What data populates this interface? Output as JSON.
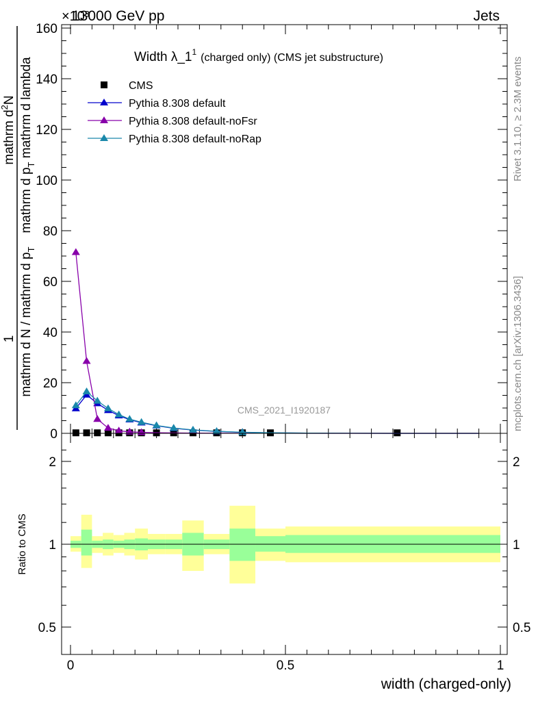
{
  "header": {
    "left": "13000 GeV pp",
    "right": "Jets",
    "multiplier": "×10³"
  },
  "side_labels": {
    "rivet": "Rivet 3.1.10, ≥ 2.3M events",
    "mcplots": "mcplots.cern.ch [arXiv:1306.3436]"
  },
  "watermark": "CMS_2021_I1920187",
  "chart_data": [
    {
      "type": "line",
      "title_main": "Width λ_1",
      "title_sup": "1",
      "title_rest": "(charged only) (CMS jet substructure)",
      "ylabel": {
        "line1": "1",
        "line2": "mathrm d N / mathrm d p",
        "line2_sub": "T",
        "line3": "mathrm d",
        "line3_sup": "2",
        "line3_rest": "N",
        "line4": "mathrm d p",
        "line4_sub": "T",
        "line4_rest": " mathrm d lambda"
      },
      "xlim": [
        0,
        1
      ],
      "ylim": [
        0,
        160
      ],
      "y_scale_factor": 1000,
      "y_ticks": [
        0,
        20,
        40,
        60,
        80,
        100,
        120,
        140,
        160
      ],
      "y_tick_labels": [
        "0",
        "20",
        "40",
        "60",
        "80",
        "100",
        "120",
        "140",
        "160"
      ],
      "legend_placement": "top-left",
      "series": [
        {
          "name": "CMS",
          "marker": "square",
          "color": "#000000",
          "x": [
            0.0125,
            0.0375,
            0.0625,
            0.0875,
            0.1125,
            0.1375,
            0.165,
            0.2,
            0.24,
            0.285,
            0.34,
            0.4,
            0.465,
            0.76
          ],
          "y": [
            0.2,
            0.2,
            0.2,
            0.2,
            0.2,
            0.2,
            0.2,
            0.2,
            0.2,
            0.2,
            0.2,
            0.2,
            0.2,
            0.2
          ]
        },
        {
          "name": "Pythia 8.308 default",
          "marker": "triangle",
          "color": "#0000cc",
          "x": [
            0.0125,
            0.0375,
            0.0625,
            0.0875,
            0.1125,
            0.1375,
            0.165,
            0.2,
            0.24,
            0.285,
            0.34,
            0.4,
            0.465,
            0.55,
            0.65,
            0.75,
            0.85,
            0.95
          ],
          "y": [
            9.8,
            15.2,
            11.8,
            9.1,
            7.0,
            5.4,
            4.2,
            3.0,
            2.0,
            1.3,
            0.75,
            0.4,
            0.2,
            0.07,
            0.03,
            0.01,
            0.005,
            0.002
          ]
        },
        {
          "name": "Pythia 8.308 default-noFsr",
          "marker": "triangle",
          "color": "#8800aa",
          "x": [
            0.0125,
            0.0375,
            0.0625,
            0.0875,
            0.1125,
            0.1375,
            0.165,
            0.2,
            0.24,
            0.285,
            0.34,
            0.4,
            0.465,
            0.55,
            0.65,
            0.75,
            0.85,
            0.95
          ],
          "y": [
            71.5,
            28.5,
            5.6,
            2.1,
            1.0,
            0.6,
            0.4,
            0.25,
            0.15,
            0.1,
            0.05,
            0.03,
            0.02,
            0.01,
            0.005,
            0.003,
            0.002,
            0.001
          ]
        },
        {
          "name": "Pythia 8.308 default-noRap",
          "marker": "triangle",
          "color": "#1a88aa",
          "x": [
            0.0125,
            0.0375,
            0.0625,
            0.0875,
            0.1125,
            0.1375,
            0.165,
            0.2,
            0.24,
            0.285,
            0.34,
            0.4,
            0.465,
            0.55,
            0.65,
            0.75,
            0.85,
            0.95
          ],
          "y": [
            11.0,
            16.5,
            12.8,
            9.8,
            7.4,
            5.6,
            4.4,
            3.1,
            2.1,
            1.35,
            0.8,
            0.42,
            0.21,
            0.08,
            0.03,
            0.012,
            0.005,
            0.002
          ]
        }
      ]
    },
    {
      "type": "area",
      "ylabel": "Ratio to CMS",
      "xlabel": "width (charged-only)",
      "xlim": [
        0,
        1
      ],
      "ylim": [
        0.4,
        2.4
      ],
      "y_scale": "log",
      "x_ticks": [
        0,
        0.5,
        1
      ],
      "x_tick_labels": [
        "0",
        "0.5",
        "1"
      ],
      "y_ticks": [
        0.5,
        1,
        2
      ],
      "y_tick_labels": [
        "0.5",
        "1",
        "2"
      ],
      "reference_line": 1,
      "bands": {
        "inner_color": "#99ff99",
        "outer_color": "#ffff99",
        "bins": [
          {
            "x0": 0.0,
            "x1": 0.025,
            "inner": [
              0.97,
              1.03
            ],
            "outer": [
              0.94,
              1.07
            ]
          },
          {
            "x0": 0.025,
            "x1": 0.05,
            "inner": [
              0.91,
              1.13
            ],
            "outer": [
              0.82,
              1.28
            ]
          },
          {
            "x0": 0.05,
            "x1": 0.075,
            "inner": [
              0.97,
              1.03
            ],
            "outer": [
              0.93,
              1.07
            ]
          },
          {
            "x0": 0.075,
            "x1": 0.1,
            "inner": [
              0.96,
              1.04
            ],
            "outer": [
              0.91,
              1.1
            ]
          },
          {
            "x0": 0.1,
            "x1": 0.125,
            "inner": [
              0.97,
              1.03
            ],
            "outer": [
              0.93,
              1.08
            ]
          },
          {
            "x0": 0.125,
            "x1": 0.15,
            "inner": [
              0.96,
              1.04
            ],
            "outer": [
              0.91,
              1.1
            ]
          },
          {
            "x0": 0.15,
            "x1": 0.18,
            "inner": [
              0.95,
              1.05
            ],
            "outer": [
              0.88,
              1.14
            ]
          },
          {
            "x0": 0.18,
            "x1": 0.22,
            "inner": [
              0.96,
              1.04
            ],
            "outer": [
              0.92,
              1.09
            ]
          },
          {
            "x0": 0.22,
            "x1": 0.26,
            "inner": [
              0.96,
              1.04
            ],
            "outer": [
              0.92,
              1.09
            ]
          },
          {
            "x0": 0.26,
            "x1": 0.31,
            "inner": [
              0.91,
              1.1
            ],
            "outer": [
              0.8,
              1.22
            ]
          },
          {
            "x0": 0.31,
            "x1": 0.37,
            "inner": [
              0.96,
              1.04
            ],
            "outer": [
              0.92,
              1.09
            ]
          },
          {
            "x0": 0.37,
            "x1": 0.43,
            "inner": [
              0.87,
              1.14
            ],
            "outer": [
              0.72,
              1.38
            ]
          },
          {
            "x0": 0.43,
            "x1": 0.5,
            "inner": [
              0.94,
              1.07
            ],
            "outer": [
              0.87,
              1.14
            ]
          },
          {
            "x0": 0.5,
            "x1": 1.0,
            "inner": [
              0.93,
              1.08
            ],
            "outer": [
              0.86,
              1.16
            ]
          }
        ]
      }
    }
  ]
}
